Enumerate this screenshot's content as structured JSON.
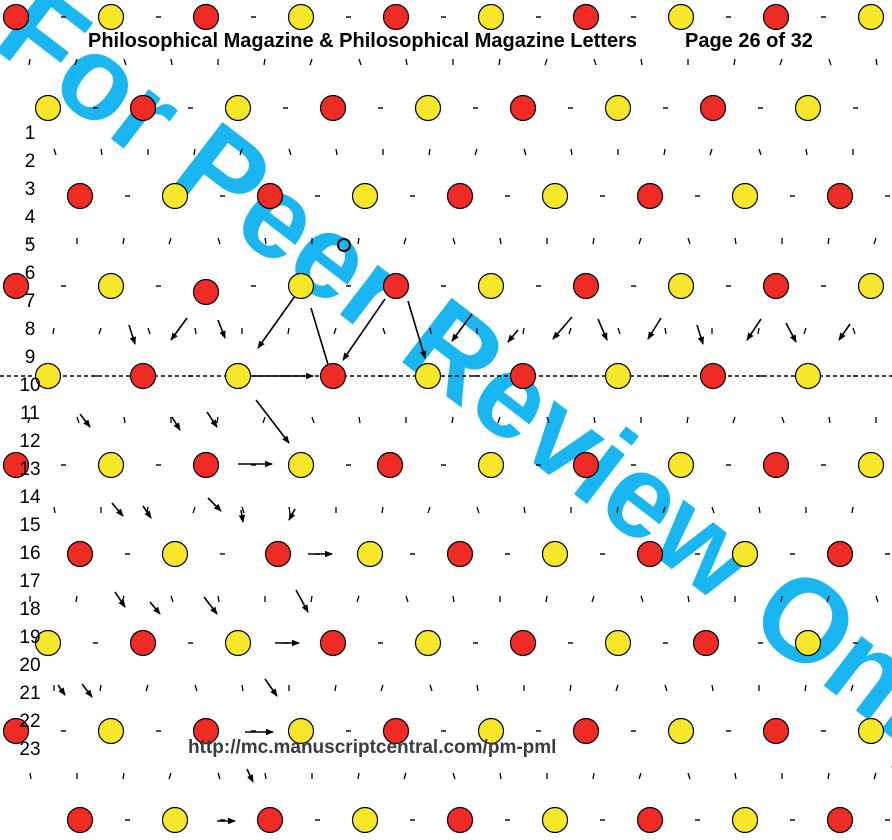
{
  "header": {
    "journal": "Philosophical Magazine & Philosophical Magazine Letters",
    "page": "Page 26 of 32"
  },
  "line_numbers": [
    "1",
    "2",
    "3",
    "4",
    "5",
    "6",
    "7",
    "8",
    "9",
    "10",
    "11",
    "12",
    "13",
    "14",
    "15",
    "16",
    "17",
    "18",
    "19",
    "20",
    "21",
    "22",
    "23"
  ],
  "footer": {
    "url": "http://mc.manuscriptcentral.com/pm-pml"
  },
  "watermark": {
    "text": "For Peer Review Only",
    "color": "#00aeef"
  },
  "colors": {
    "atom_red": "#ee2b24",
    "atom_yellow": "#f6e72a",
    "arrow": "#000000",
    "text": "#000000",
    "url_text": "#3c3c3c"
  }
}
